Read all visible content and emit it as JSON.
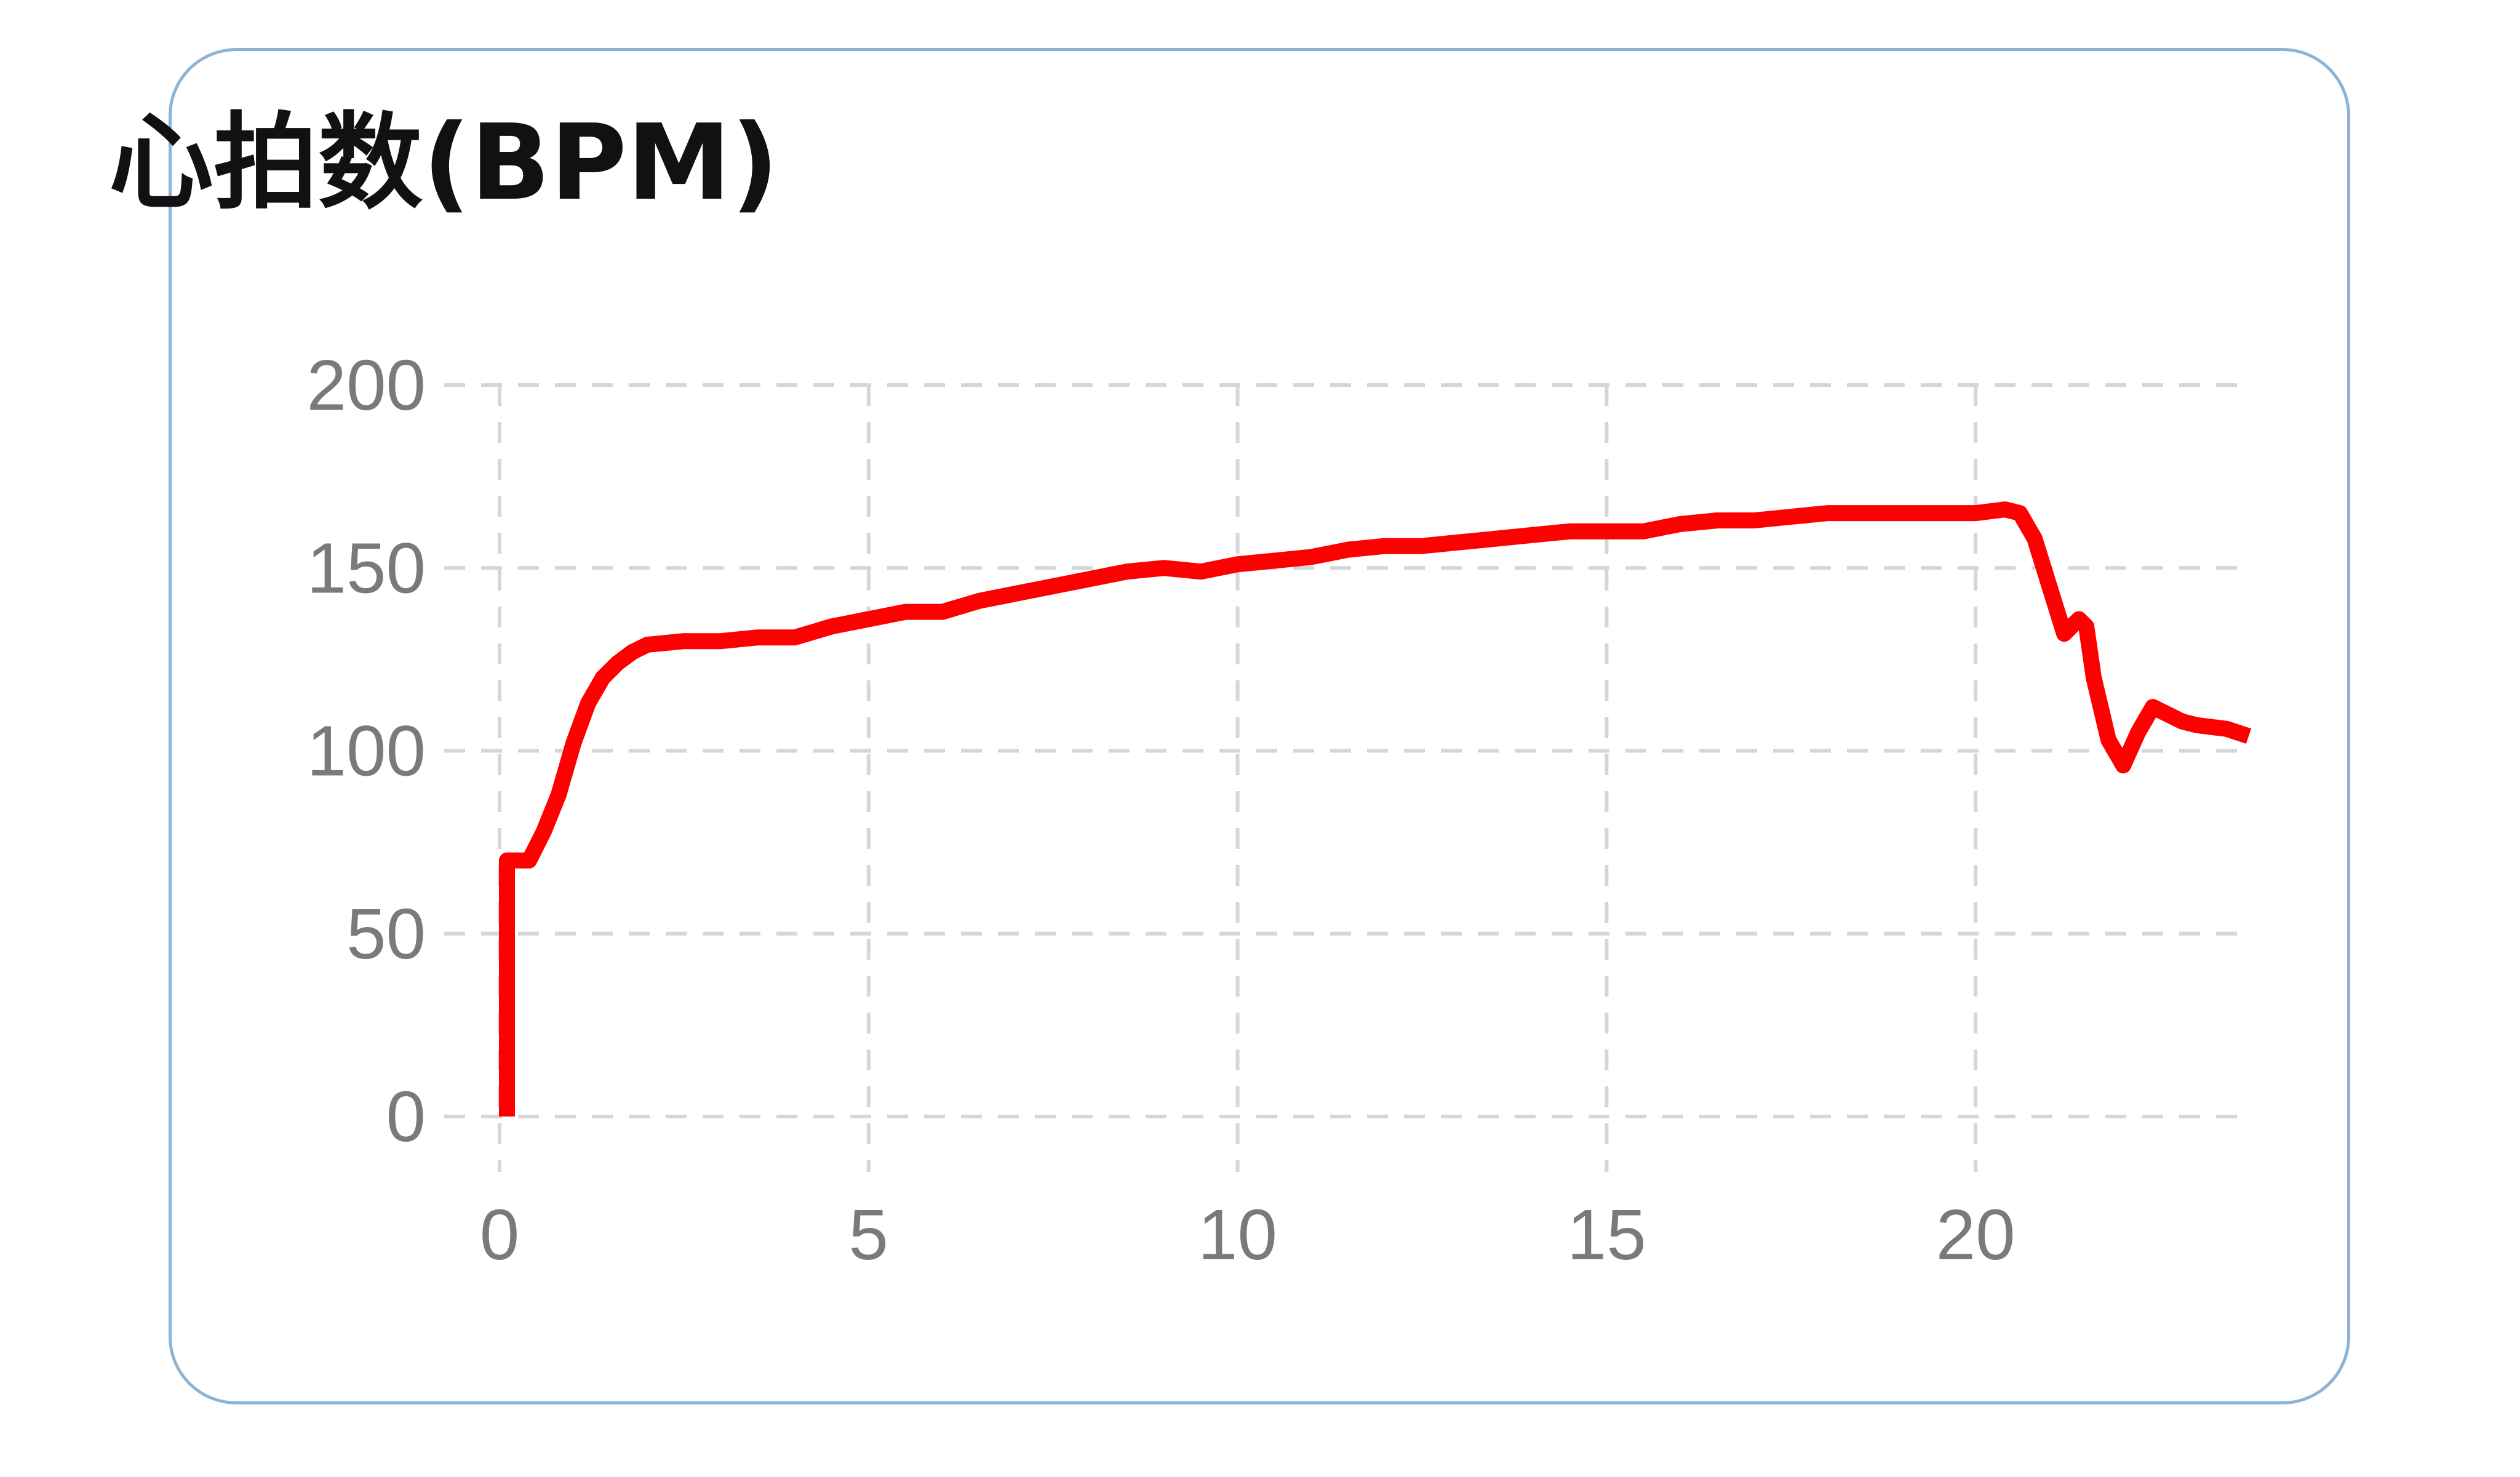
{
  "chart_data": {
    "type": "line",
    "title": "心拍数(BPM)",
    "xlabel": "",
    "ylabel": "",
    "xlim": [
      0,
      23.7
    ],
    "ylim": [
      0,
      200
    ],
    "x_ticks": [
      "0",
      "5",
      "10",
      "15",
      "20"
    ],
    "y_ticks": [
      "0",
      "50",
      "100",
      "150",
      "200"
    ],
    "grid": true,
    "grid_style": "dashed",
    "legend": "none",
    "series": [
      {
        "color": "#ff0000",
        "x": [
          0.1,
          0.1,
          0.4,
          0.6,
          0.8,
          1.0,
          1.2,
          1.4,
          1.6,
          1.8,
          2.0,
          2.5,
          3.0,
          3.5,
          4.0,
          4.5,
          5.0,
          5.5,
          6.0,
          6.5,
          7.0,
          7.5,
          8.0,
          8.5,
          9.0,
          9.5,
          10.0,
          10.5,
          11.0,
          11.5,
          12.0,
          12.5,
          13.0,
          13.5,
          14.0,
          14.5,
          15.0,
          15.5,
          16.0,
          16.5,
          17.0,
          17.5,
          18.0,
          18.5,
          19.0,
          19.5,
          20.0,
          20.4,
          20.6,
          20.8,
          21.0,
          21.2,
          21.4,
          21.5,
          21.6,
          21.8,
          22.0,
          22.2,
          22.4,
          22.6,
          22.8,
          23.0,
          23.4,
          23.7
        ],
        "y": [
          0,
          70,
          70,
          78,
          88,
          102,
          113,
          120,
          124,
          127,
          129,
          130,
          130,
          131,
          131,
          134,
          136,
          138,
          138,
          141,
          143,
          145,
          147,
          149,
          150,
          149,
          151,
          152,
          153,
          155,
          156,
          156,
          157,
          158,
          159,
          160,
          160,
          160,
          162,
          163,
          163,
          164,
          165,
          165,
          165,
          165,
          165,
          166,
          165,
          158,
          145,
          132,
          136,
          134,
          120,
          103,
          96,
          105,
          112,
          110,
          108,
          107,
          106,
          104
        ]
      }
    ]
  }
}
